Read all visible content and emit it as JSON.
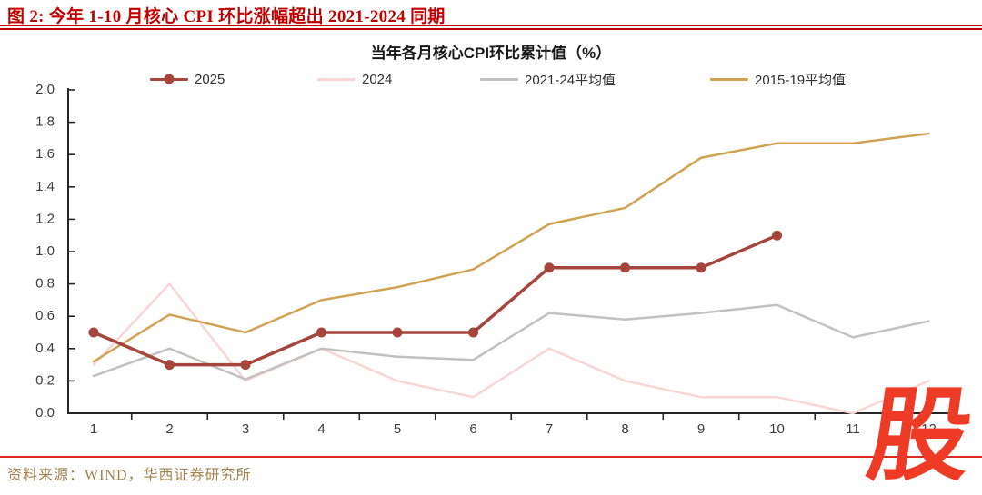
{
  "header": {
    "title": "图 2: 今年 1-10 月核心 CPI 环比涨幅超出 2021-2024 同期"
  },
  "chart_data": {
    "type": "line",
    "title": "当年各月核心CPI环比累计值（%）",
    "xlabel": "",
    "ylabel": "",
    "x": [
      1,
      2,
      3,
      4,
      5,
      6,
      7,
      8,
      9,
      10,
      11,
      12
    ],
    "ylim": [
      0.0,
      2.0
    ],
    "ytick_step": 0.2,
    "grid": false,
    "legend_position": "top",
    "series": [
      {
        "name": "2025",
        "color": "#A5453C",
        "marker": "circle",
        "values": [
          0.5,
          0.3,
          0.3,
          0.5,
          0.5,
          0.5,
          0.9,
          0.9,
          0.9,
          1.1
        ]
      },
      {
        "name": "2024",
        "color": "#F9D6D3",
        "marker": "none",
        "values": [
          0.3,
          0.8,
          0.2,
          0.4,
          0.2,
          0.1,
          0.4,
          0.2,
          0.1,
          0.1,
          0.0,
          0.2
        ]
      },
      {
        "name": "2021-24平均值",
        "color": "#C1C1C1",
        "marker": "none",
        "values": [
          0.23,
          0.4,
          0.21,
          0.4,
          0.35,
          0.33,
          0.62,
          0.58,
          0.62,
          0.67,
          0.47,
          0.57
        ]
      },
      {
        "name": "2015-19平均值",
        "color": "#CFA254",
        "marker": "none",
        "values": [
          0.32,
          0.61,
          0.5,
          0.7,
          0.78,
          0.89,
          1.17,
          1.27,
          1.58,
          1.67,
          1.67,
          1.73
        ]
      }
    ]
  },
  "footer": {
    "source": "资料来源：WIND，华西证券研究所"
  },
  "watermark": {
    "text": "股"
  },
  "colors": {
    "accent_red": "#C00000",
    "bottom_rule_red": "#D92B1F",
    "logo_red": "#EE3B26",
    "source_text": "#A3824F",
    "axis": "#262626",
    "tick_label": "#3d3d3d"
  }
}
